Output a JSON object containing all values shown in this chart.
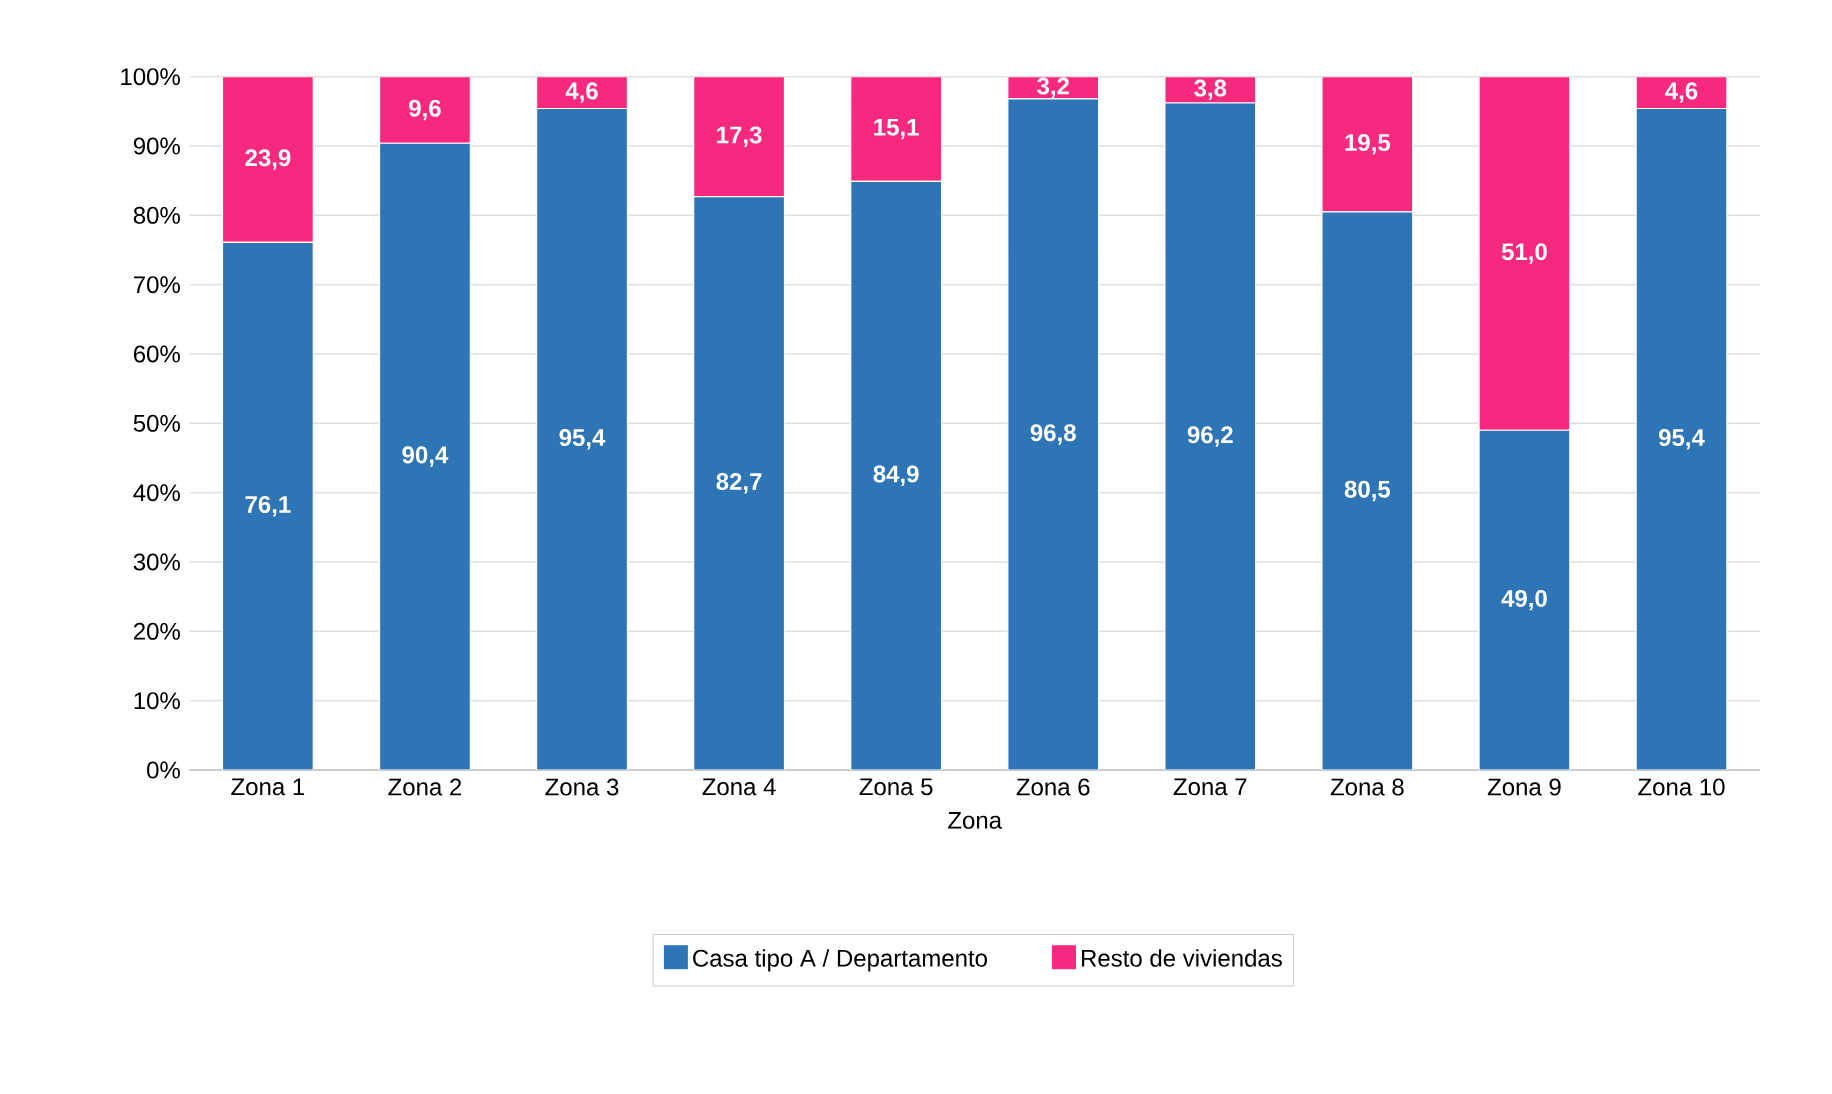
{
  "chart_data": {
    "type": "bar",
    "stacked": true,
    "xlabel": "Zona",
    "categories": [
      "Zona 1",
      "Zona 2",
      "Zona 3",
      "Zona 4",
      "Zona 5",
      "Zona 6",
      "Zona 7",
      "Zona 8",
      "Zona 9",
      "Zona 10"
    ],
    "series": [
      {
        "name": "Casa tipo A / Departamento",
        "color": "#2e75b6",
        "values": [
          76.1,
          90.4,
          95.4,
          82.7,
          84.9,
          96.8,
          96.2,
          80.5,
          49.0,
          95.4
        ],
        "value_labels": [
          "76,1",
          "90,4",
          "95,4",
          "82,7",
          "84,9",
          "96,8",
          "96,2",
          "80,5",
          "49,0",
          "95,4"
        ]
      },
      {
        "name": "Resto de viviendas",
        "color": "#f7297f",
        "values": [
          23.9,
          9.6,
          4.6,
          17.3,
          15.1,
          3.2,
          3.8,
          19.5,
          51.0,
          4.6
        ],
        "value_labels": [
          "23,9",
          "9,6",
          "4,6",
          "17,3",
          "15,1",
          "3,2",
          "3,8",
          "19,5",
          "51,0",
          "4,6"
        ]
      }
    ],
    "ylim": [
      0,
      100
    ],
    "yticks": [
      {
        "value": 0,
        "label": "0%"
      },
      {
        "value": 10,
        "label": "10%"
      },
      {
        "value": 20,
        "label": "20%"
      },
      {
        "value": 30,
        "label": "30%"
      },
      {
        "value": 40,
        "label": "40%"
      },
      {
        "value": 50,
        "label": "50%"
      },
      {
        "value": 60,
        "label": "60%"
      },
      {
        "value": 70,
        "label": "70%"
      },
      {
        "value": 80,
        "label": "80%"
      },
      {
        "value": 90,
        "label": "90%"
      },
      {
        "value": 100,
        "label": "100%"
      }
    ],
    "grid": "y",
    "legend": "bottom"
  }
}
